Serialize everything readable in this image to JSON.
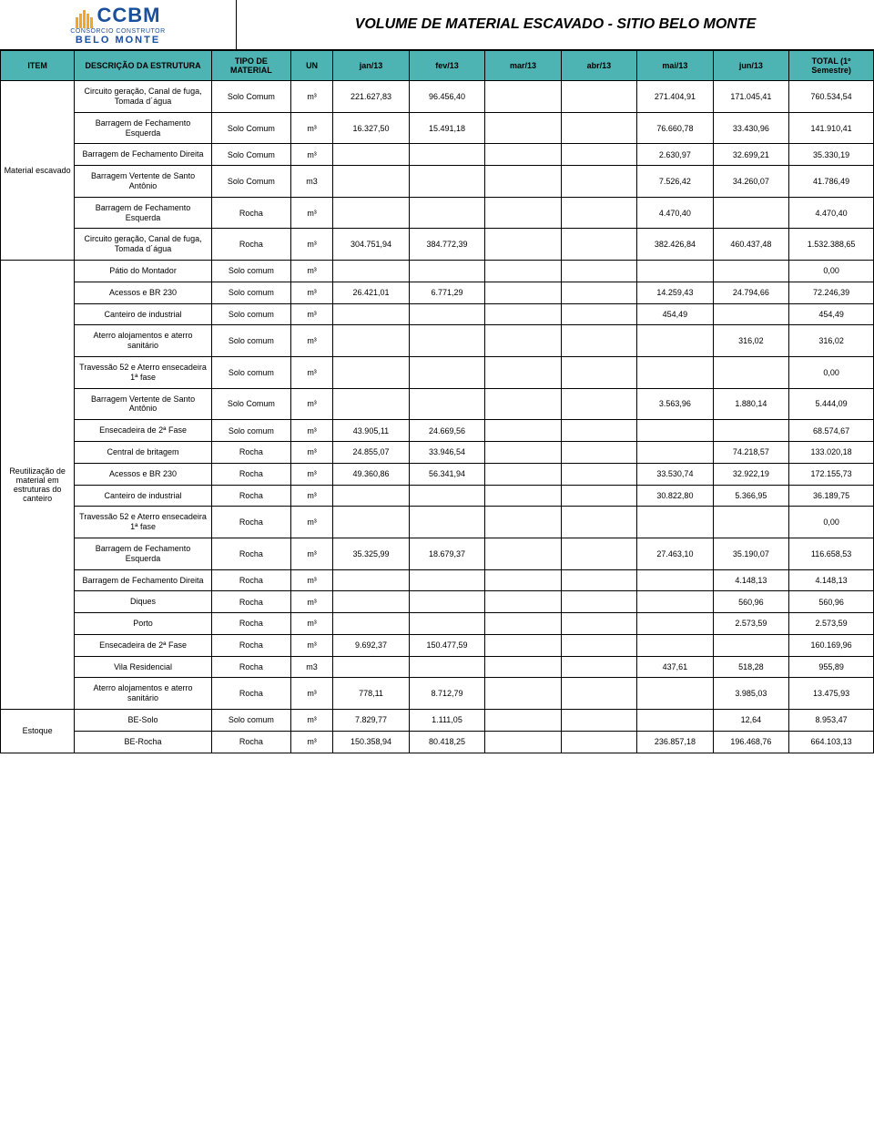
{
  "title": "VOLUME DE MATERIAL ESCAVADO - SITIO BELO MONTE",
  "logo": {
    "main": "CCBM",
    "sub": "CONSÓRCIO CONSTRUTOR",
    "name": "BELO MONTE"
  },
  "headers": {
    "item": "ITEM",
    "desc": "DESCRIÇÃO DA ESTRUTURA",
    "tipo": "TIPO DE MATERIAL",
    "un": "UN",
    "m1": "jan/13",
    "m2": "fev/13",
    "m3": "mar/13",
    "m4": "abr/13",
    "m5": "mai/13",
    "m6": "jun/13",
    "total": "TOTAL (1º Semestre)"
  },
  "groups": [
    {
      "item": "Material escavado",
      "rows": [
        {
          "desc": "Circuito geração, Canal de fuga, Tomada d´água",
          "tipo": "Solo Comum",
          "un": "m³",
          "v": [
            "221.627,83",
            "96.456,40",
            "",
            "",
            "271.404,91",
            "171.045,41",
            "760.534,54"
          ]
        },
        {
          "desc": "Barragem de Fechamento Esquerda",
          "tipo": "Solo Comum",
          "un": "m³",
          "v": [
            "16.327,50",
            "15.491,18",
            "",
            "",
            "76.660,78",
            "33.430,96",
            "141.910,41"
          ]
        },
        {
          "desc": "Barragem de Fechamento Direita",
          "tipo": "Solo Comum",
          "un": "m³",
          "v": [
            "",
            "",
            "",
            "",
            "2.630,97",
            "32.699,21",
            "35.330,19"
          ]
        },
        {
          "desc": "Barragem Vertente de Santo Antônio",
          "tipo": "Solo Comum",
          "un": "m3",
          "v": [
            "",
            "",
            "",
            "",
            "7.526,42",
            "34.260,07",
            "41.786,49"
          ]
        },
        {
          "desc": "Barragem de Fechamento Esquerda",
          "tipo": "Rocha",
          "un": "m³",
          "v": [
            "",
            "",
            "",
            "",
            "4.470,40",
            "",
            "4.470,40"
          ]
        },
        {
          "desc": "Circuito geração, Canal de fuga, Tomada d´água",
          "tipo": "Rocha",
          "un": "m³",
          "v": [
            "304.751,94",
            "384.772,39",
            "",
            "",
            "382.426,84",
            "460.437,48",
            "1.532.388,65"
          ]
        }
      ]
    },
    {
      "item": "Reutilização de material em estruturas do canteiro",
      "rows": [
        {
          "desc": "Pátio do Montador",
          "tipo": "Solo comum",
          "un": "m³",
          "v": [
            "",
            "",
            "",
            "",
            "",
            "",
            "0,00"
          ]
        },
        {
          "desc": "Acessos e BR 230",
          "tipo": "Solo comum",
          "un": "m³",
          "v": [
            "26.421,01",
            "6.771,29",
            "",
            "",
            "14.259,43",
            "24.794,66",
            "72.246,39"
          ]
        },
        {
          "desc": "Canteiro de industrial",
          "tipo": "Solo comum",
          "un": "m³",
          "v": [
            "",
            "",
            "",
            "",
            "454,49",
            "",
            "454,49"
          ]
        },
        {
          "desc": "Aterro alojamentos e aterro sanitário",
          "tipo": "Solo comum",
          "un": "m³",
          "v": [
            "",
            "",
            "",
            "",
            "",
            "316,02",
            "316,02"
          ]
        },
        {
          "desc": "Travessão 52 e Aterro ensecadeira 1ª fase",
          "tipo": "Solo comum",
          "un": "m³",
          "v": [
            "",
            "",
            "",
            "",
            "",
            "",
            "0,00"
          ]
        },
        {
          "desc": "Barragem Vertente de Santo Antônio",
          "tipo": "Solo Comum",
          "un": "m³",
          "v": [
            "",
            "",
            "",
            "",
            "3.563,96",
            "1.880,14",
            "5.444,09"
          ]
        },
        {
          "desc": "Ensecadeira de 2ª Fase",
          "tipo": "Solo comum",
          "un": "m³",
          "v": [
            "43.905,11",
            "24.669,56",
            "",
            "",
            "",
            "",
            "68.574,67"
          ]
        },
        {
          "desc": "Central de britagem",
          "tipo": "Rocha",
          "un": "m³",
          "v": [
            "24.855,07",
            "33.946,54",
            "",
            "",
            "",
            "74.218,57",
            "133.020,18"
          ]
        },
        {
          "desc": "Acessos e BR 230",
          "tipo": "Rocha",
          "un": "m³",
          "v": [
            "49.360,86",
            "56.341,94",
            "",
            "",
            "33.530,74",
            "32.922,19",
            "172.155,73"
          ]
        },
        {
          "desc": "Canteiro de industrial",
          "tipo": "Rocha",
          "un": "m³",
          "v": [
            "",
            "",
            "",
            "",
            "30.822,80",
            "5.366,95",
            "36.189,75"
          ]
        },
        {
          "desc": "Travessão 52 e Aterro ensecadeira 1ª fase",
          "tipo": "Rocha",
          "un": "m³",
          "v": [
            "",
            "",
            "",
            "",
            "",
            "",
            "0,00"
          ]
        },
        {
          "desc": "Barragem de Fechamento Esquerda",
          "tipo": "Rocha",
          "un": "m³",
          "v": [
            "35.325,99",
            "18.679,37",
            "",
            "",
            "27.463,10",
            "35.190,07",
            "116.658,53"
          ]
        },
        {
          "desc": "Barragem de Fechamento Direita",
          "tipo": "Rocha",
          "un": "m³",
          "v": [
            "",
            "",
            "",
            "",
            "",
            "4.148,13",
            "4.148,13"
          ]
        },
        {
          "desc": "Diques",
          "tipo": "Rocha",
          "un": "m³",
          "v": [
            "",
            "",
            "",
            "",
            "",
            "560,96",
            "560,96"
          ]
        },
        {
          "desc": "Porto",
          "tipo": "Rocha",
          "un": "m³",
          "v": [
            "",
            "",
            "",
            "",
            "",
            "2.573,59",
            "2.573,59"
          ]
        },
        {
          "desc": "Ensecadeira de 2ª Fase",
          "tipo": "Rocha",
          "un": "m³",
          "v": [
            "9.692,37",
            "150.477,59",
            "",
            "",
            "",
            "",
            "160.169,96"
          ]
        },
        {
          "desc": "Vila Residencial",
          "tipo": "Rocha",
          "un": "m3",
          "v": [
            "",
            "",
            "",
            "",
            "437,61",
            "518,28",
            "955,89"
          ]
        },
        {
          "desc": "Aterro alojamentos e aterro sanitário",
          "tipo": "Rocha",
          "un": "m³",
          "v": [
            "778,11",
            "8.712,79",
            "",
            "",
            "",
            "3.985,03",
            "13.475,93"
          ]
        }
      ]
    },
    {
      "item": "Estoque",
      "rows": [
        {
          "desc": "BE-Solo",
          "tipo": "Solo comum",
          "un": "m³",
          "v": [
            "7.829,77",
            "1.111,05",
            "",
            "",
            "",
            "12,64",
            "8.953,47"
          ]
        },
        {
          "desc": "BE-Rocha",
          "tipo": "Rocha",
          "un": "m³",
          "v": [
            "150.358,94",
            "80.418,25",
            "",
            "",
            "236.857,18",
            "196.468,76",
            "664.103,13"
          ]
        }
      ]
    }
  ],
  "colors": {
    "header_bg": "#4db3b3",
    "border": "#000000",
    "logo_blue": "#1a4f9c",
    "logo_orange": "#f5a623"
  }
}
